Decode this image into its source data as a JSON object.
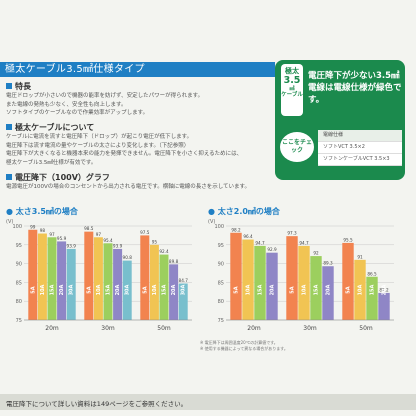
{
  "header": {
    "title": "極太ケーブル3.5㎟仕様タイプ"
  },
  "features": {
    "heading": "特長",
    "lines": [
      "電圧ドロップが小さいので機器の能率を妨げず、安定したパワーが得られます。",
      "また電線の発熱も少なく、安全性も向上します。",
      "ソフトタイプのケーブルなので作業効率がアップします。"
    ]
  },
  "about": {
    "heading": "極太ケーブルについて",
    "lines": [
      "ケーブルに電流を流すと電圧降下（ドロップ）が起こり電圧が低下します。",
      "電圧降下は流す電流の量やケーブルの太さにより変化します。（下記参照）",
      "電圧降下が大きくなると機器本来の能力を発揮できません。電圧降下を小さく抑えるためには、",
      "極太ケーブル3.5㎟仕様が有効です。"
    ]
  },
  "graph_section": {
    "heading": "電圧降下（100V）グラフ",
    "line": "電源電圧が100Vの場合のコンセントから出力される電圧です。横軸に電線の長さを示しています。"
  },
  "promo": {
    "badge_top": "極太",
    "badge_num": "3.5",
    "badge_unit": "㎟",
    "badge_bottom": "ケーブル",
    "text": "電圧降下が少ない3.5㎟電線は電線仕様が緑色です。",
    "check_label": "ここをチェック",
    "table": {
      "header": "電線仕様",
      "row1": "ソフトVCT 3.5×2",
      "row2": "ソフトンケーブルVCT 3.5×3"
    }
  },
  "colors": {
    "accent": "#1f7fc4",
    "green": "#1b8a4d",
    "bar_5a": "#f2834f",
    "bar_10a": "#f1c453",
    "bar_15a": "#9ccf5e",
    "bar_20a": "#8f86c6",
    "bar_30a": "#78bfcd"
  },
  "notes": [
    "※ 電圧降下は周囲温度20℃の計算値です。",
    "※ 使用する機器によって異なる場合があります。"
  ],
  "footer": {
    "text": "電圧降下について詳しい資料は149ページをご参照ください。"
  },
  "chart_data": [
    {
      "type": "bar",
      "title": "太さ3.5㎟の場合",
      "ylabel": "(V)",
      "ylim": [
        75,
        100
      ],
      "yticks": [
        75,
        80,
        85,
        90,
        95,
        100
      ],
      "categories": [
        "20m",
        "30m",
        "50m"
      ],
      "series": [
        {
          "name": "5A",
          "values": [
            99,
            98.5,
            97.5
          ]
        },
        {
          "name": "10A",
          "values": [
            98,
            97,
            95
          ]
        },
        {
          "name": "15A",
          "values": [
            97,
            95.4,
            92.4
          ]
        },
        {
          "name": "20A",
          "values": [
            95.9,
            93.9,
            89.8
          ]
        },
        {
          "name": "30A",
          "values": [
            93.9,
            90.8,
            84.7
          ]
        }
      ]
    },
    {
      "type": "bar",
      "title": "太さ2.0㎟の場合",
      "ylabel": "(V)",
      "ylim": [
        75,
        100
      ],
      "yticks": [
        75,
        80,
        85,
        90,
        95,
        100
      ],
      "categories": [
        "20m",
        "30m",
        "50m"
      ],
      "series": [
        {
          "name": "5A",
          "values": [
            98.2,
            97.3,
            95.5
          ]
        },
        {
          "name": "10A",
          "values": [
            96.4,
            94.7,
            91
          ]
        },
        {
          "name": "15A",
          "values": [
            94.7,
            92,
            86.5
          ]
        },
        {
          "name": "20A",
          "values": [
            92.9,
            89.3,
            82.2
          ]
        }
      ]
    }
  ]
}
